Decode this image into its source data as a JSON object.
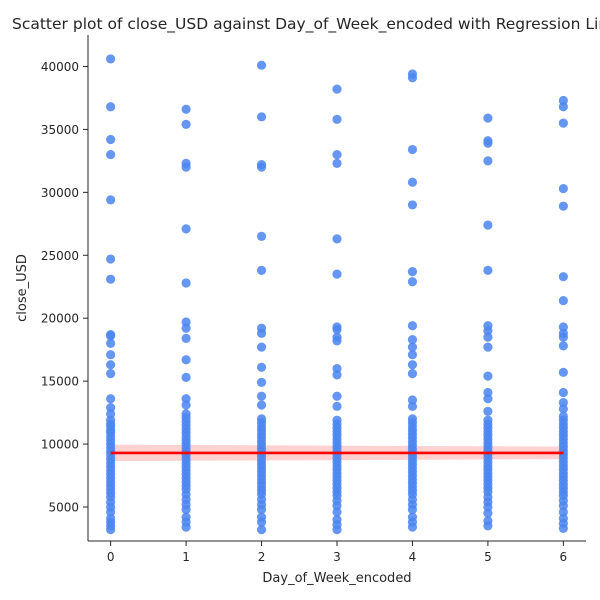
{
  "chart_data": {
    "type": "scatter",
    "title": "Scatter plot of close_USD against Day_of_Week_encoded with Regression Line",
    "xlabel": "Day_of_Week_encoded",
    "ylabel": "close_USD",
    "xlim": [
      -0.3,
      6.3
    ],
    "ylim": [
      2300,
      42500
    ],
    "xticks": [
      0,
      1,
      2,
      3,
      4,
      5,
      6
    ],
    "yticks": [
      5000,
      10000,
      15000,
      20000,
      25000,
      30000,
      35000,
      40000
    ],
    "grid": false,
    "point_color": "#4a85f0",
    "regression_color": "#ff0000",
    "ci_color": "#ff9a9a",
    "regression": {
      "x": [
        0,
        6
      ],
      "y": [
        9300,
        9300
      ],
      "ci_lower": [
        8650,
        8800
      ],
      "ci_upper": [
        9950,
        9800
      ]
    },
    "series": [
      {
        "x": 0,
        "values": [
          40600,
          36800,
          34200,
          33000,
          29400,
          24700,
          23100,
          18700,
          18600,
          18000,
          17100,
          16300,
          15600,
          13600,
          12900,
          12400,
          11900,
          11600,
          11400,
          11100,
          10900,
          10600,
          10300,
          10000,
          9700,
          9400,
          9100,
          8800,
          8500,
          8200,
          7900,
          7600,
          7300,
          7000,
          6700,
          6400,
          6100,
          5800,
          5400,
          5000,
          4600,
          4100,
          3800,
          3500,
          3200
        ]
      },
      {
        "x": 1,
        "values": [
          36600,
          35400,
          32300,
          32000,
          27100,
          22800,
          19700,
          19200,
          18400,
          16700,
          15300,
          13600,
          13100,
          12400,
          12100,
          11800,
          11500,
          11200,
          10900,
          10600,
          10300,
          10000,
          9700,
          9400,
          9100,
          8800,
          8500,
          8200,
          7900,
          7600,
          7300,
          7000,
          6700,
          6400,
          6000,
          5600,
          5200,
          4800,
          4200,
          3800,
          3400
        ]
      },
      {
        "x": 2,
        "values": [
          40100,
          36000,
          32200,
          32000,
          26500,
          23800,
          19200,
          18800,
          17700,
          16100,
          14900,
          13800,
          13100,
          12000,
          11700,
          11400,
          11100,
          10800,
          10500,
          10200,
          9900,
          9600,
          9300,
          9000,
          8700,
          8400,
          8100,
          7800,
          7500,
          7200,
          6900,
          6600,
          6300,
          6000,
          5600,
          5200,
          4800,
          4200,
          3800,
          3200
        ]
      },
      {
        "x": 3,
        "values": [
          38200,
          35800,
          33000,
          32300,
          26300,
          23500,
          19300,
          19100,
          18500,
          18200,
          16000,
          15500,
          13800,
          13000,
          11900,
          11600,
          11300,
          11000,
          10700,
          10400,
          10100,
          9800,
          9500,
          9200,
          8900,
          8600,
          8300,
          8000,
          7700,
          7400,
          7100,
          6800,
          6500,
          6200,
          5900,
          5500,
          5100,
          4600,
          4000,
          3600,
          3200
        ]
      },
      {
        "x": 4,
        "values": [
          39400,
          39100,
          33400,
          30800,
          29000,
          23700,
          22900,
          19400,
          18300,
          17700,
          17100,
          16300,
          15600,
          13500,
          13000,
          12000,
          11700,
          11400,
          11100,
          10800,
          10500,
          10200,
          9900,
          9600,
          9300,
          9000,
          8700,
          8400,
          8100,
          7800,
          7500,
          7200,
          6900,
          6600,
          6300,
          6000,
          5600,
          5200,
          4800,
          4200,
          3800,
          3400
        ]
      },
      {
        "x": 5,
        "values": [
          35900,
          34100,
          33900,
          32500,
          27400,
          23800,
          19400,
          19000,
          18500,
          17700,
          15400,
          14100,
          13600,
          12600,
          11900,
          11600,
          11300,
          11000,
          10700,
          10400,
          10100,
          9800,
          9500,
          9200,
          8900,
          8600,
          8300,
          8000,
          7700,
          7400,
          7100,
          6800,
          6500,
          6200,
          5800,
          5400,
          5000,
          4500,
          3900,
          3500
        ]
      },
      {
        "x": 6,
        "values": [
          37300,
          36800,
          35500,
          30300,
          28900,
          23300,
          21400,
          19300,
          18800,
          18500,
          17800,
          15700,
          14100,
          13300,
          12800,
          12200,
          11900,
          11600,
          11300,
          11000,
          10700,
          10400,
          10100,
          9800,
          9500,
          9200,
          8900,
          8600,
          8300,
          8000,
          7700,
          7400,
          7100,
          6800,
          6500,
          6200,
          5900,
          5500,
          5100,
          4600,
          4100,
          3700,
          3300
        ]
      }
    ]
  }
}
